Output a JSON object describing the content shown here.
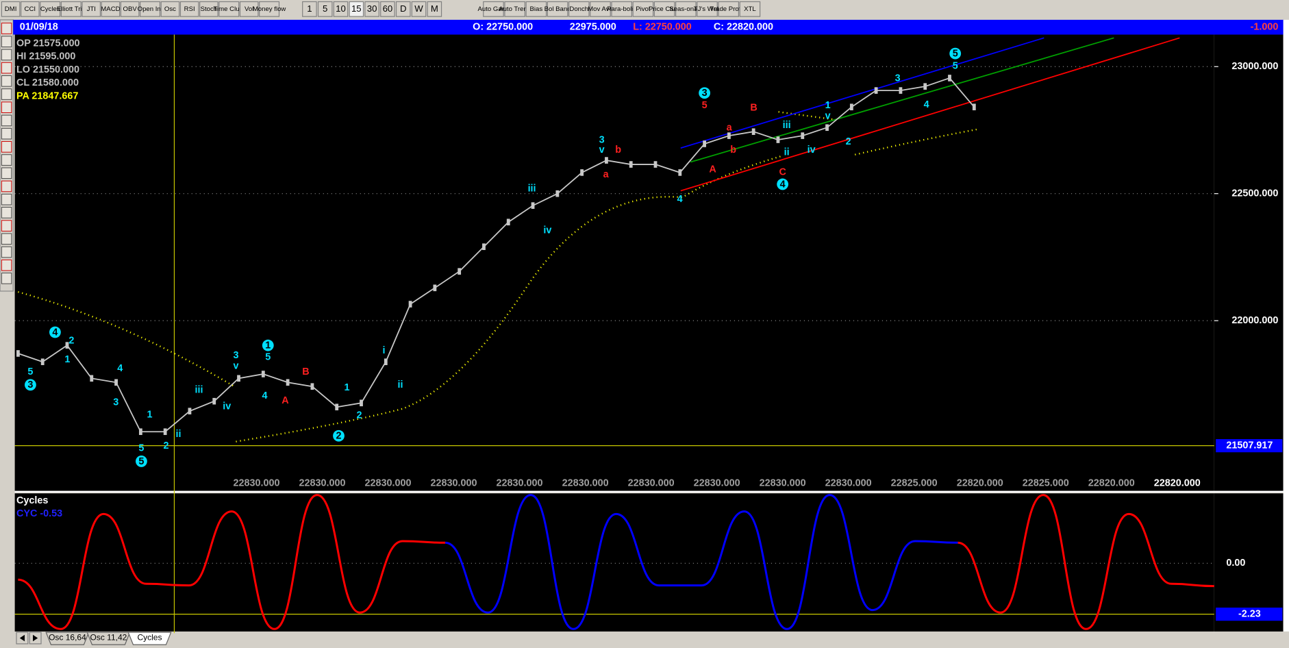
{
  "toolbar": {
    "indicators": [
      "DMI",
      "CCI",
      "Cycles",
      "Elliott Trig",
      "JTI",
      "MACD",
      "OBV",
      "Open Int",
      "Osc",
      "RSI",
      "Stoch",
      "Time Clust",
      "Vol",
      "Money flow"
    ],
    "intervals": [
      "1",
      "5",
      "10",
      "15",
      "30",
      "60",
      "D",
      "W",
      "M"
    ],
    "studies": [
      "Auto Gann",
      "Auto Trend",
      "Bias",
      "Bol Band",
      "Donch",
      "Mov Ave",
      "Para-bolic",
      "Pivot",
      "Price Clust",
      "Seas-onals",
      "TJ's Web",
      "Trade Profile",
      "XTL"
    ]
  },
  "info_bar": {
    "date": "01/09/18",
    "open": "O: 22750.000",
    "high": "22975.000",
    "low": "L: 22750.000",
    "close": "C: 22820.000",
    "change": "-1.000"
  },
  "ohlc_panel": [
    "OP  21575.000",
    "HI   21595.000",
    "LO  21550.000",
    "CL  21580.000",
    "PA  21847.667"
  ],
  "chart_data": {
    "type": "line",
    "values": [
      21871,
      21838,
      21903,
      21773,
      21757,
      21563,
      21563,
      21644,
      21683,
      21773,
      21790,
      21757,
      21741,
      21660,
      21676,
      21838,
      22065,
      22129,
      22194,
      22291,
      22388,
      22453,
      22500,
      22583,
      22631,
      22615,
      22615,
      22583,
      22696,
      22728,
      22744,
      22712,
      22728,
      22760,
      22841,
      22906,
      22906,
      22922,
      22955,
      22841
    ],
    "color": "#c8c8c8",
    "ylim": [
      21385,
      23126
    ],
    "yticks": [
      {
        "value": 23000,
        "label": "23000.000"
      },
      {
        "value": 22500,
        "label": "22500.000"
      },
      {
        "value": 22000,
        "label": "22000.000"
      }
    ],
    "marker_line": {
      "value": 21507.917,
      "label": "21507.917"
    },
    "x_labels": [
      "22830.000",
      "22830.000",
      "22830.000",
      "22830.000",
      "22830.000",
      "22830.000",
      "22830.000",
      "22830.000",
      "22830.000",
      "22830.000",
      "22825.000",
      "22820.000",
      "22825.000",
      "22820.000",
      "22820.000"
    ],
    "waves": [
      {
        "text": "3",
        "color": "cyan",
        "circled": true
      },
      {
        "text": "5",
        "color": "cyan"
      },
      {
        "text": "4",
        "color": "cyan",
        "circled": true
      },
      {
        "text": "2",
        "color": "cyan"
      },
      {
        "text": "1",
        "color": "cyan"
      },
      {
        "text": "4",
        "color": "cyan"
      },
      {
        "text": "3",
        "color": "cyan"
      },
      {
        "text": "5",
        "color": "cyan"
      },
      {
        "text": "5",
        "color": "cyan",
        "circled": true
      },
      {
        "text": "1",
        "color": "cyan"
      },
      {
        "text": "2",
        "color": "cyan"
      },
      {
        "text": "ii",
        "color": "cyan"
      },
      {
        "text": "iii",
        "color": "cyan"
      },
      {
        "text": "iv",
        "color": "cyan"
      },
      {
        "text": "3",
        "color": "cyan"
      },
      {
        "text": "v",
        "color": "cyan"
      },
      {
        "text": "1",
        "color": "cyan",
        "circled": true
      },
      {
        "text": "5",
        "color": "cyan"
      },
      {
        "text": "4",
        "color": "cyan"
      },
      {
        "text": "A",
        "color": "red"
      },
      {
        "text": "B",
        "color": "red"
      },
      {
        "text": "1",
        "color": "cyan"
      },
      {
        "text": "2",
        "color": "cyan"
      },
      {
        "text": "2",
        "color": "cyan",
        "circled": true
      },
      {
        "text": "i",
        "color": "cyan"
      },
      {
        "text": "ii",
        "color": "cyan"
      },
      {
        "text": "iii",
        "color": "cyan"
      },
      {
        "text": "iv",
        "color": "cyan"
      },
      {
        "text": "3",
        "color": "cyan"
      },
      {
        "text": "v",
        "color": "cyan"
      },
      {
        "text": "a",
        "color": "red"
      },
      {
        "text": "b",
        "color": "red"
      },
      {
        "text": "4",
        "color": "cyan"
      },
      {
        "text": "3",
        "color": "cyan",
        "circled": true
      },
      {
        "text": "5",
        "color": "red"
      },
      {
        "text": "A",
        "color": "red"
      },
      {
        "text": "a",
        "color": "red"
      },
      {
        "text": "b",
        "color": "red"
      },
      {
        "text": "B",
        "color": "red"
      },
      {
        "text": "C",
        "color": "red"
      },
      {
        "text": "4",
        "color": "cyan",
        "circled": true
      },
      {
        "text": "iii",
        "color": "cyan"
      },
      {
        "text": "ii",
        "color": "cyan"
      },
      {
        "text": "iv",
        "color": "cyan"
      },
      {
        "text": "1",
        "color": "cyan"
      },
      {
        "text": "v",
        "color": "cyan"
      },
      {
        "text": "2",
        "color": "cyan"
      },
      {
        "text": "3",
        "color": "cyan"
      },
      {
        "text": "4",
        "color": "cyan"
      },
      {
        "text": "5",
        "color": "cyan",
        "circled": true
      },
      {
        "text": "5",
        "color": "cyan"
      }
    ]
  },
  "oscillator": {
    "title": "Cycles",
    "reading": "CYC -0.53",
    "ylim": [
      -3.06,
      2.99
    ],
    "yticks": [
      {
        "value": 0,
        "label": "0.00"
      }
    ],
    "marker_line": {
      "value": -2.23,
      "label": "-2.23"
    },
    "series": [
      {
        "color": "#ff0000",
        "values": [
          -0.72,
          -2.88,
          2.16,
          -0.9,
          -0.97,
          2.27,
          -2.88,
          2.99,
          -2.16,
          0.97,
          0.9
        ]
      },
      {
        "color": "#0000ff",
        "values": [
          -2.16,
          2.99,
          -2.88,
          2.16,
          -0.97,
          -0.97,
          2.27,
          -2.88,
          2.99,
          -2.05,
          0.97,
          0.9
        ]
      },
      {
        "color": "#ff0000",
        "values": [
          -2.16,
          2.99,
          -2.88,
          2.16,
          -0.9,
          -1.0
        ]
      }
    ]
  },
  "tabs": [
    "Osc 16,64",
    "Osc 11,42",
    "Cycles"
  ]
}
